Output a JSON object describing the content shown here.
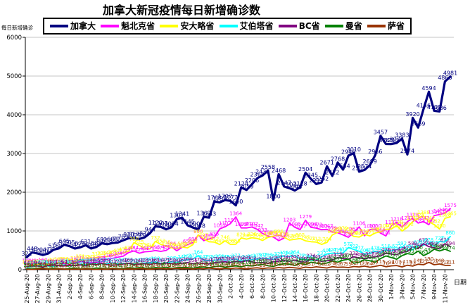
{
  "title": "加拿大新冠疫情每日新增确诊数",
  "y_axis_title": "每日新增确诊",
  "x_axis_title": "日期",
  "chart_data": {
    "type": "line",
    "title": "加拿大新冠疫情每日新增确诊数",
    "xlabel": "日期",
    "ylabel": "每日新增确诊",
    "ylim": [
      0,
      6000
    ],
    "y_ticks": [
      0,
      1000,
      2000,
      3000,
      4000,
      5000,
      6000
    ],
    "grid": true,
    "legend_position": "top",
    "x_tick_step": 2,
    "x": [
      "25-Aug-20",
      "26-Aug-20",
      "27-Aug-20",
      "28-Aug-20",
      "29-Aug-20",
      "30-Aug-20",
      "31-Aug-20",
      "1-Sep-20",
      "2-Sep-20",
      "3-Sep-20",
      "4-Sep-20",
      "5-Sep-20",
      "6-Sep-20",
      "7-Sep-20",
      "8-Sep-20",
      "9-Sep-20",
      "10-Sep-20",
      "11-Sep-20",
      "12-Sep-20",
      "13-Sep-20",
      "14-Sep-20",
      "15-Sep-20",
      "16-Sep-20",
      "17-Sep-20",
      "18-Sep-20",
      "19-Sep-20",
      "20-Sep-20",
      "21-Sep-20",
      "22-Sep-20",
      "23-Sep-20",
      "24-Sep-20",
      "25-Sep-20",
      "26-Sep-20",
      "27-Sep-20",
      "28-Sep-20",
      "29-Sep-20",
      "30-Sep-20",
      "1-Oct-20",
      "2-Oct-20",
      "3-Oct-20",
      "4-Oct-20",
      "5-Oct-20",
      "6-Oct-20",
      "7-Oct-20",
      "8-Oct-20",
      "9-Oct-20",
      "10-Oct-20",
      "11-Oct-20",
      "12-Oct-20",
      "13-Oct-20",
      "14-Oct-20",
      "15-Oct-20",
      "16-Oct-20",
      "17-Oct-20",
      "18-Oct-20",
      "19-Oct-20",
      "20-Oct-20",
      "21-Oct-20",
      "22-Oct-20",
      "23-Oct-20",
      "24-Oct-20",
      "25-Oct-20",
      "26-Oct-20",
      "27-Oct-20",
      "28-Oct-20",
      "29-Oct-20",
      "30-Oct-20",
      "31-Oct-20",
      "1-Nov-20",
      "2-Nov-20",
      "3-Nov-20",
      "4-Nov-20",
      "5-Nov-20",
      "6-Nov-20",
      "7-Nov-20",
      "8-Nov-20",
      "9-Nov-20",
      "10-Nov-20",
      "11-Nov-20",
      "12-Nov-20"
    ],
    "series": [
      {
        "name": "加拿大",
        "color": "#000080",
        "line_width": 3.2,
        "label_size": 8,
        "values": [
          322,
          448,
          420,
          380,
          416,
          516,
          550,
          645,
          605,
          545,
          578,
          631,
          548,
          588,
          681,
          658,
          688,
          702,
          759,
          810,
          817,
          793,
          834,
          944,
          1120,
          1103,
          1044,
          1094,
          1307,
          1341,
          1145,
          1090,
          1038,
          1362,
          1343,
          1763,
          1739,
          1797,
          1777,
          1660,
          2124,
          2059,
          2206,
          2364,
          2435,
          2558,
          1800,
          2468,
          2147,
          2103,
          2046,
          2128,
          2504,
          2345,
          2211,
          2252,
          2671,
          2422,
          2768,
          2584,
          2946,
          3010,
          2531,
          2574,
          2699,
          2956,
          3457,
          3245,
          3244,
          3273,
          3383,
          2974,
          3920,
          3669,
          4146,
          4594,
          4102,
          4086,
          4860,
          4981
        ]
      },
      {
        "name": "魁北克省",
        "color": "#FF00FF",
        "line_width": 1.8,
        "label_size": 7,
        "values": [
          144,
          141,
          138,
          160,
          140,
          127,
          184,
          156,
          141,
          180,
          216,
          176,
          187,
          185,
          205,
          276,
          292,
          324,
          349,
          441,
          484,
          425,
          462,
          471,
          495,
          473,
          498,
          586,
          489,
          582,
          650,
          698,
          896,
          750,
          795,
          835,
          1052,
          1107,
          1191,
          1364,
          1079,
          1078,
          1102,
          1042,
          933,
          869,
          843,
          750,
          815,
          1203,
          1095,
          1037,
          1279,
          1094,
          1072,
          1033,
          1042,
          979,
          953,
          896,
          836,
          963,
          1106,
          877,
          1033,
          1050,
          944,
          871,
          1138,
          1218,
          1102,
          1242,
          1328,
          1203,
          1242,
          1162,
          1397,
          1426,
          1462,
          1575
        ]
      },
      {
        "name": "安大略省",
        "color": "#FFFF00",
        "line_width": 1.8,
        "label_size": 7,
        "values": [
          105,
          118,
          125,
          112,
          148,
          170,
          185,
          190,
          161,
          213,
          251,
          232,
          248,
          315,
          335,
          344,
          365,
          407,
          435,
          478,
          700,
          625,
          554,
          538,
          732,
          653,
          615,
          566,
          548,
          583,
          563,
          645,
          900,
          797,
          721,
          712,
          649,
          746,
          653,
          658,
          821,
          790,
          826,
          808,
          754,
          834,
          866,
          896,
          836,
          763,
          783,
          805,
          745,
          721,
          712,
          653,
          704,
          896,
          963,
          979,
          953,
          860,
          841,
          914,
          871,
          948,
          977,
          1042,
          1050,
          1138,
          998,
          1092,
          1242,
          1328,
          1388,
          1242,
          1162,
          1050,
          1328,
          1365
        ]
      },
      {
        "name": "艾伯塔省",
        "color": "#00FFFF",
        "line_width": 1.8,
        "label_size": 7,
        "values": [
          58,
          77,
          102,
          120,
          94,
          86,
          111,
          125,
          98,
          107,
          146,
          135,
          164,
          142,
          153,
          156,
          174,
          148,
          162,
          159,
          141,
          156,
          173,
          185,
          198,
          164,
          177,
          207,
          187,
          246,
          259,
          277,
          364,
          247,
          232,
          243,
          259,
          246,
          247,
          277,
          222,
          246,
          259,
          273,
          302,
          287,
          265,
          322,
          356,
          340,
          364,
          277,
          259,
          246,
          247,
          332,
          406,
          427,
          419,
          432,
          572,
          522,
          477,
          406,
          419,
          472,
          443,
          515,
          482,
          522,
          592,
          502,
          519,
          622,
          633,
          678,
          605,
          727,
          713,
          860
        ]
      },
      {
        "name": "BC省",
        "color": "#800080",
        "line_width": 1.8,
        "label_size": 7,
        "values": [
          84,
          100,
          94,
          68,
          112,
          121,
          105,
          98,
          116,
          102,
          124,
          98,
          148,
          121,
          165,
          132,
          117,
          125,
          148,
          165,
          130,
          146,
          155,
          139,
          161,
          148,
          170,
          158,
          146,
          167,
          184,
          155,
          172,
          161,
          148,
          179,
          195,
          203,
          188,
          217,
          198,
          231,
          203,
          174,
          186,
          165,
          203,
          221,
          234,
          217,
          247,
          203,
          192,
          274,
          241,
          217,
          229,
          252,
          313,
          287,
          274,
          332,
          303,
          286,
          317,
          331,
          356,
          425,
          403,
          389,
          445,
          472,
          589,
          544,
          672,
          594,
          565,
          536,
          672,
          594
        ]
      },
      {
        "name": "曼省",
        "color": "#008000",
        "line_width": 1.8,
        "label_size": 7,
        "values": [
          25,
          18,
          32,
          40,
          22,
          35,
          28,
          16,
          30,
          42,
          19,
          36,
          26,
          44,
          33,
          21,
          38,
          30,
          27,
          45,
          36,
          54,
          40,
          32,
          55,
          48,
          61,
          36,
          52,
          58,
          54,
          36,
          64,
          72,
          55,
          80,
          93,
          64,
          85,
          98,
          74,
          110,
          96,
          120,
          135,
          102,
          84,
          128,
          153,
          142,
          110,
          168,
          132,
          193,
          170,
          146,
          173,
          221,
          193,
          243,
          270,
          168,
          193,
          254,
          230,
          193,
          287,
          354,
          313,
          270,
          363,
          417,
          391,
          480,
          363,
          430,
          530,
          483,
          530,
          474
        ]
      },
      {
        "name": "萨省",
        "color": "#993300",
        "line_width": 1.8,
        "label_size": 7,
        "values": [
          12,
          8,
          17,
          25,
          14,
          10,
          20,
          16,
          9,
          18,
          11,
          22,
          15,
          7,
          19,
          13,
          25,
          17,
          10,
          21,
          14,
          28,
          20,
          12,
          24,
          31,
          18,
          26,
          35,
          22,
          29,
          16,
          33,
          25,
          41,
          30,
          19,
          36,
          28,
          44,
          33,
          21,
          38,
          50,
          29,
          45,
          36,
          55,
          42,
          60,
          48,
          35,
          66,
          51,
          74,
          58,
          43,
          78,
          62,
          67,
          55,
          82,
          71,
          93,
          64,
          87,
          115,
          76,
          98,
          107,
          71,
          115,
          93,
          142,
          127,
          190,
          127,
          148,
          112,
          111
        ]
      }
    ]
  }
}
